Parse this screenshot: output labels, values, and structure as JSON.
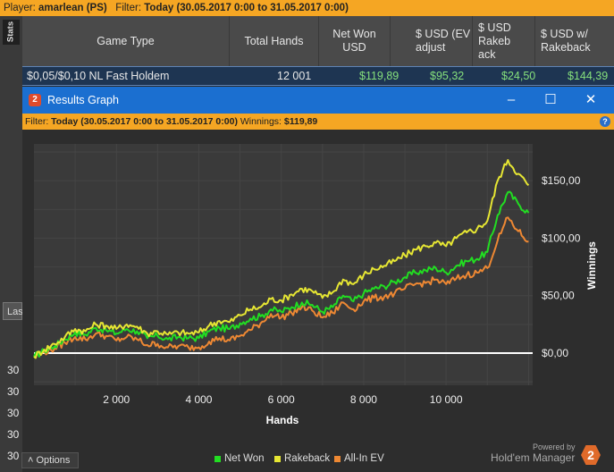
{
  "topbar": {
    "player_label": "Player:",
    "player_value": "amarlean (PS)",
    "filter_label": "Filter:",
    "filter_value": "Today (30.05.2017 0:00 to 31.05.2017 0:00)"
  },
  "left_panel": {
    "stats_tab": "Stats",
    "las_label": "Las",
    "row_values": [
      "30",
      "30",
      "30",
      "30",
      "30"
    ]
  },
  "table": {
    "headers": [
      "Game Type",
      "Total Hands",
      "Net Won USD",
      "$ USD (EV adjust",
      "$ USD Rakeb ack",
      "$ USD w/ Rakeback"
    ],
    "row": {
      "game_type": "$0,05/$0,10 NL Fast Holdem",
      "total_hands": "12 001",
      "net_won": "$119,89",
      "ev_adjusted": "$95,32",
      "rakeback": "$24,50",
      "with_rakeback": "$144,39"
    }
  },
  "window": {
    "icon": "2",
    "title": "Results Graph",
    "minimize": "‒",
    "maximize": "☐",
    "close": "✕",
    "filter_label": "Filter:",
    "filter_value": "Today (30.05.2017 0:00 to 31.05.2017 0:00)",
    "winnings_label": "Winnings:",
    "winnings_value": "$119,89",
    "help": "?"
  },
  "chart_data": {
    "type": "line",
    "xlabel": "Hands",
    "ylabel": "Winnings",
    "xlim": [
      0,
      12100
    ],
    "ylim": [
      -28,
      182
    ],
    "x_ticks": [
      2000,
      4000,
      6000,
      8000,
      10000
    ],
    "x_tick_labels": [
      "2 000",
      "4 000",
      "6 000",
      "8 000",
      "10 000"
    ],
    "y_ticks": [
      0,
      50,
      100,
      150
    ],
    "y_tick_labels": [
      "$0,00",
      "$50,00",
      "$100,00",
      "$150,00"
    ],
    "grid": true,
    "legend_position": "bottom",
    "x": [
      0,
      250,
      500,
      750,
      1000,
      1250,
      1500,
      1750,
      2000,
      2250,
      2500,
      2750,
      3000,
      3250,
      3500,
      3750,
      4000,
      4250,
      4500,
      4750,
      5000,
      5250,
      5500,
      5750,
      6000,
      6250,
      6500,
      6750,
      7000,
      7250,
      7500,
      7750,
      8000,
      8250,
      8500,
      8750,
      9000,
      9250,
      9500,
      9750,
      10000,
      10250,
      10500,
      10750,
      11000,
      11250,
      11500,
      11750,
      12000
    ],
    "series": [
      {
        "name": "Net Won",
        "color": "#22dd22",
        "values": [
          -3,
          2,
          6,
          12,
          18,
          16,
          22,
          20,
          17,
          21,
          19,
          13,
          15,
          12,
          14,
          13,
          13,
          19,
          22,
          21,
          26,
          30,
          32,
          38,
          36,
          40,
          44,
          42,
          36,
          40,
          50,
          45,
          52,
          56,
          58,
          62,
          66,
          70,
          72,
          74,
          70,
          76,
          80,
          82,
          88,
          120,
          140,
          130,
          122
        ]
      },
      {
        "name": "Rakeback",
        "color": "#e6e633",
        "values": [
          -3,
          3,
          8,
          14,
          21,
          19,
          25,
          24,
          21,
          25,
          23,
          17,
          19,
          16,
          18,
          17,
          18,
          24,
          28,
          27,
          33,
          38,
          40,
          47,
          46,
          51,
          56,
          54,
          48,
          53,
          64,
          60,
          68,
          73,
          76,
          80,
          85,
          90,
          93,
          96,
          93,
          100,
          105,
          108,
          115,
          150,
          168,
          156,
          146
        ]
      },
      {
        "name": "All-In EV",
        "color": "#ee8833",
        "values": [
          -3,
          1,
          4,
          9,
          14,
          12,
          17,
          15,
          11,
          14,
          12,
          7,
          8,
          5,
          6,
          5,
          5,
          10,
          13,
          11,
          15,
          20,
          26,
          34,
          31,
          35,
          40,
          37,
          31,
          35,
          44,
          38,
          45,
          48,
          49,
          52,
          56,
          60,
          61,
          64,
          60,
          65,
          68,
          70,
          74,
          98,
          118,
          106,
          97
        ]
      }
    ]
  },
  "footer": {
    "options_icon": "˄",
    "options_label": "Options",
    "legend": [
      "Net Won",
      "Rakeback",
      "All-In EV"
    ],
    "powered_by": "Powered by",
    "brand": "Hold'em Manager",
    "brand_logo": "2"
  }
}
